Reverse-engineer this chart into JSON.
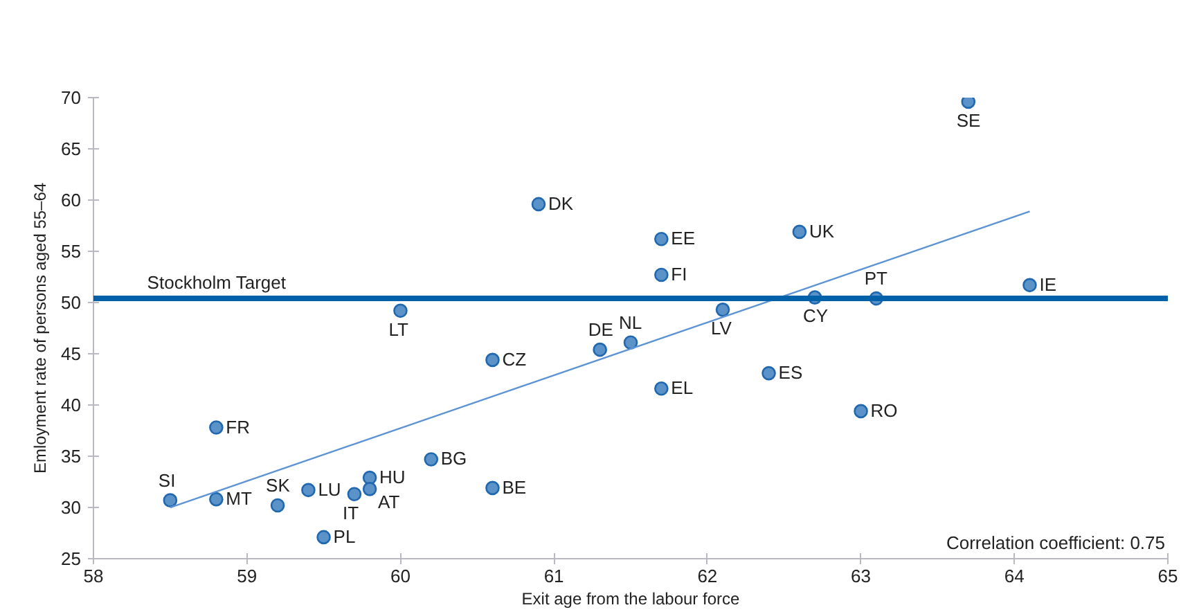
{
  "chart_data": {
    "type": "scatter",
    "xlabel": "Exit age from the labour force",
    "ylabel": "Emloyment rate of persons aged 55–64",
    "xlim": [
      58,
      65
    ],
    "xticks": [
      58,
      59,
      60,
      61,
      62,
      63,
      64,
      65
    ],
    "ylim": [
      25,
      70
    ],
    "yticks": [
      25,
      30,
      35,
      40,
      45,
      50,
      55,
      60,
      65,
      70
    ],
    "grid": false,
    "marker": "circle",
    "series": [
      {
        "color": "#5b93c9",
        "x": [
          63.7,
          60.9,
          61.7,
          62.6,
          61.7,
          60.0,
          62.1,
          62.7,
          63.1,
          64.1,
          61.3,
          61.5,
          60.6,
          61.7,
          62.4,
          63.0,
          58.8,
          60.2,
          59.8,
          59.8,
          59.7,
          59.4,
          60.6,
          58.5,
          58.8,
          59.2,
          59.5
        ],
        "values": [
          69.6,
          59.6,
          56.2,
          56.9,
          52.7,
          49.2,
          49.3,
          50.5,
          50.4,
          51.7,
          45.4,
          46.1,
          44.4,
          41.6,
          43.1,
          39.4,
          37.8,
          34.7,
          32.9,
          31.8,
          31.3,
          31.7,
          31.9,
          30.7,
          30.8,
          30.2,
          27.1
        ]
      },
      {
        "type": "line",
        "marker": "none",
        "color": "#5b93d5",
        "x": [
          58.5,
          64.1
        ],
        "values": [
          30.0,
          58.9
        ]
      }
    ],
    "ref_lines": [
      {
        "axis": "y",
        "value": 50.4,
        "label": "Stockholm Target",
        "color": "#0060a8"
      }
    ],
    "annotations": [
      {
        "text": "SE",
        "x": 63.7,
        "y": 69.6
      },
      {
        "text": "DK",
        "x": 60.9,
        "y": 59.6
      },
      {
        "text": "EE",
        "x": 61.7,
        "y": 56.2
      },
      {
        "text": "UK",
        "x": 62.6,
        "y": 56.9
      },
      {
        "text": "FI",
        "x": 61.7,
        "y": 52.7
      },
      {
        "text": "LT",
        "x": 60.0,
        "y": 49.2
      },
      {
        "text": "LV",
        "x": 62.1,
        "y": 49.3
      },
      {
        "text": "CY",
        "x": 62.7,
        "y": 50.5
      },
      {
        "text": "PT",
        "x": 63.1,
        "y": 50.4
      },
      {
        "text": "IE",
        "x": 64.1,
        "y": 51.7
      },
      {
        "text": "DE",
        "x": 61.3,
        "y": 45.4
      },
      {
        "text": "NL",
        "x": 61.5,
        "y": 46.1
      },
      {
        "text": "CZ",
        "x": 60.6,
        "y": 44.4
      },
      {
        "text": "EL",
        "x": 61.7,
        "y": 41.6
      },
      {
        "text": "ES",
        "x": 62.4,
        "y": 43.1
      },
      {
        "text": "RO",
        "x": 63.0,
        "y": 39.4
      },
      {
        "text": "FR",
        "x": 58.8,
        "y": 37.8
      },
      {
        "text": "BG",
        "x": 60.2,
        "y": 34.7
      },
      {
        "text": "HU",
        "x": 59.8,
        "y": 32.9
      },
      {
        "text": "AT",
        "x": 59.8,
        "y": 31.8
      },
      {
        "text": "IT",
        "x": 59.7,
        "y": 31.3
      },
      {
        "text": "LU",
        "x": 59.4,
        "y": 31.7
      },
      {
        "text": "BE",
        "x": 60.6,
        "y": 31.9
      },
      {
        "text": "SI",
        "x": 58.5,
        "y": 30.7
      },
      {
        "text": "MT",
        "x": 58.8,
        "y": 30.8
      },
      {
        "text": "SK",
        "x": 59.2,
        "y": 30.2
      },
      {
        "text": "PL",
        "x": 59.5,
        "y": 27.1
      },
      "Correlation coefficient: 0.75"
    ]
  }
}
